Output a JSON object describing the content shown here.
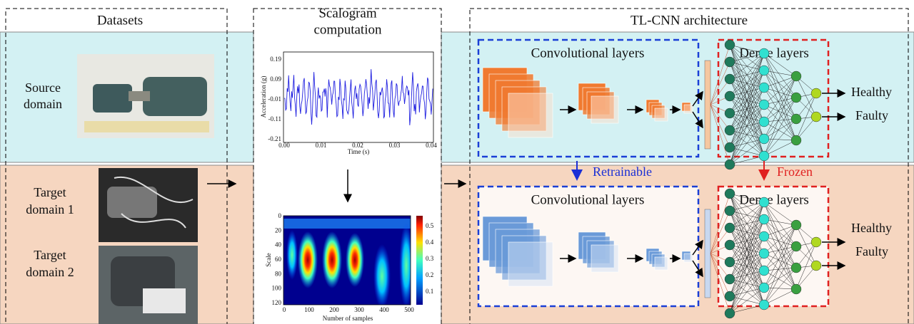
{
  "header": {
    "datasets": "Datasets",
    "scalogram": [
      "Scalogram",
      "computation"
    ],
    "architecture": "TL-CNN architecture"
  },
  "rows": {
    "source": [
      "Source",
      "domain"
    ],
    "target_1": [
      "Target",
      "domain 1"
    ],
    "target_2": [
      "Target",
      "domain 2"
    ]
  },
  "signal_plot": {
    "y_label": "Acceleration (g)",
    "x_label": "Time (s)",
    "y_ticks": [
      "0.19",
      "0.09",
      "-0.01",
      "-0.11",
      "-0.21"
    ],
    "x_ticks": [
      "0.00",
      "0.01",
      "0.02",
      "0.03",
      "0.04"
    ]
  },
  "scalogram_plot": {
    "y_label": "Scale",
    "x_label": "Number of samples",
    "y_ticks": [
      "0",
      "20",
      "40",
      "60",
      "80",
      "100",
      "120"
    ],
    "x_ticks": [
      "0",
      "100",
      "200",
      "300",
      "400",
      "500"
    ],
    "colorbar_ticks": [
      "0.5",
      "0.4",
      "0.3",
      "0.2",
      "0.1"
    ]
  },
  "source_model": {
    "conv_label": "Convolutional layers",
    "dense_label": "Dense layers",
    "outputs": [
      "Healthy",
      "Faulty"
    ]
  },
  "target_model": {
    "conv_label": "Convolutional layers",
    "dense_label": "Dense layers",
    "outputs": [
      "Healthy",
      "Faulty"
    ]
  },
  "transfer": {
    "retrainable": "Retrainable",
    "frozen": "Frozen"
  }
}
